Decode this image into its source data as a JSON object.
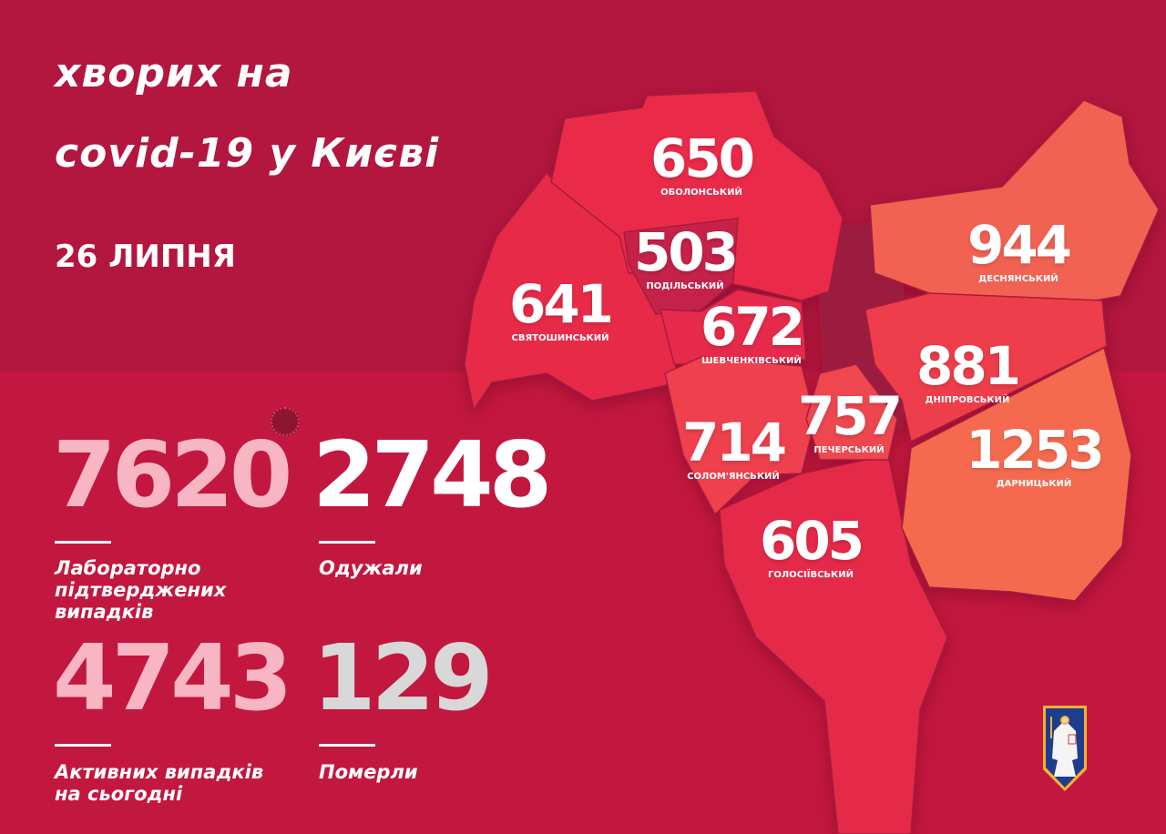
{
  "header": {
    "title_line1": "хворих на",
    "title_line2": "covid-19 у Києві",
    "date": "26 ЛИПНЯ"
  },
  "districts": [
    {
      "name": "ОБОЛОНСЬКИЙ",
      "cases": "650",
      "color": "#ea2a4a"
    },
    {
      "name": "ПОДІЛЬСЬКИЙ",
      "cases": "503",
      "color": "#c4234a"
    },
    {
      "name": "СВЯТОШИНСЬКИЙ",
      "cases": "641",
      "color": "#e8294a"
    },
    {
      "name": "ШЕВЧЕНКІВСЬКИЙ",
      "cases": "672",
      "color": "#e62b4b"
    },
    {
      "name": "СОЛОМ'ЯНСЬКИЙ",
      "cases": "714",
      "color": "#ee404d"
    },
    {
      "name": "ПЕЧЕРСЬКИЙ",
      "cases": "757",
      "color": "#ef474f"
    },
    {
      "name": "ГОЛОСІЇВСЬКИЙ",
      "cases": "605",
      "color": "#e52a4a"
    },
    {
      "name": "ДЕСНЯНСЬКИЙ",
      "cases": "944",
      "color": "#f26252"
    },
    {
      "name": "ДНІПРОВСЬКИЙ",
      "cases": "881",
      "color": "#ee3d4c"
    },
    {
      "name": "ДАРНИЦЬКИЙ",
      "cases": "1253",
      "color": "#f56a50"
    }
  ],
  "stats": {
    "confirmed": {
      "value": "7620",
      "label": "Лабораторно підтверджених випадків",
      "color": "#f8b5c4"
    },
    "recovered": {
      "value": "2748",
      "label": "Одужали",
      "color": "#ffffff"
    },
    "active": {
      "value": "4743",
      "label": "Активних випадків на сьогодні",
      "color": "#f8b5c4"
    },
    "deaths": {
      "value": "129",
      "label": "Померли",
      "color": "#d8d8d8"
    }
  },
  "icons": {
    "virus": "virus-icon",
    "coat_of_arms": "kyiv-coat-of-arms"
  }
}
